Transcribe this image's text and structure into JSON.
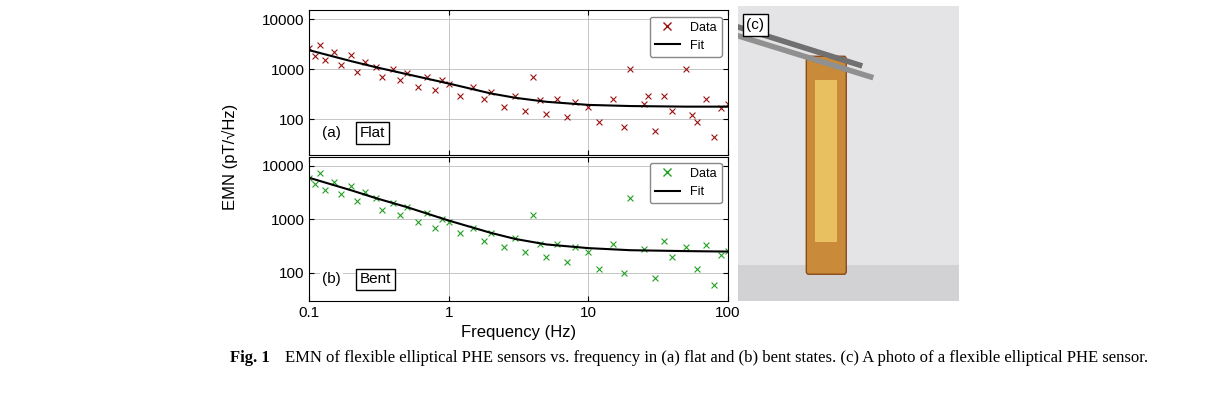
{
  "chart_data": [
    {
      "type": "scatter",
      "panel_label": "(a)",
      "state_label": "Flat",
      "log": true,
      "grid": true,
      "legend": "upper right",
      "tick_labels": "y",
      "xlim": [
        0.1,
        100
      ],
      "xticks": [
        0.1,
        1,
        10,
        100
      ],
      "ylim": [
        20,
        15000
      ],
      "yticks": [
        100,
        1000,
        10000
      ],
      "series": [
        {
          "name": "Data",
          "type": "scatter",
          "marker": "x",
          "color": "#9b1111",
          "x": [
            0.1,
            0.11,
            0.12,
            0.13,
            0.15,
            0.17,
            0.2,
            0.22,
            0.25,
            0.3,
            0.33,
            0.4,
            0.45,
            0.5,
            0.6,
            0.7,
            0.8,
            0.9,
            1,
            1.2,
            1.5,
            1.8,
            2,
            2.5,
            3,
            3.5,
            4,
            4.5,
            5,
            6,
            7,
            8,
            10,
            12,
            15,
            18,
            20,
            25,
            27,
            30,
            35,
            40,
            50,
            55,
            60,
            70,
            80,
            90,
            100
          ],
          "values": [
            2600,
            1800,
            3000,
            1500,
            2200,
            1200,
            1900,
            900,
            1400,
            1100,
            700,
            1000,
            600,
            850,
            450,
            700,
            380,
            600,
            500,
            300,
            450,
            250,
            350,
            180,
            300,
            150,
            700,
            240,
            130,
            250,
            110,
            220,
            180,
            90,
            260,
            70,
            1000,
            200,
            300,
            60,
            300,
            150,
            1000,
            120,
            90,
            250,
            45,
            170,
            200
          ]
        },
        {
          "name": "Fit",
          "type": "line",
          "color": "#000000",
          "line_style": "solid",
          "x": [
            0.1,
            0.2,
            0.3,
            0.5,
            1,
            2,
            3,
            5,
            10,
            20,
            50,
            100
          ],
          "values": [
            2400,
            1450,
            1100,
            800,
            520,
            330,
            270,
            225,
            195,
            185,
            180,
            180
          ]
        }
      ]
    },
    {
      "type": "scatter",
      "panel_label": "(b)",
      "state_label": "Bent",
      "log": true,
      "grid": true,
      "legend": "upper right",
      "x_label": "Frequency (Hz)",
      "xlim": [
        0.1,
        100
      ],
      "xticks": [
        0.1,
        1,
        10,
        100
      ],
      "ylim": [
        30,
        15000
      ],
      "yticks": [
        100,
        1000,
        10000
      ],
      "series": [
        {
          "name": "Data",
          "type": "scatter",
          "marker": "x",
          "color": "#22a022",
          "x": [
            0.1,
            0.11,
            0.12,
            0.13,
            0.15,
            0.17,
            0.2,
            0.22,
            0.25,
            0.3,
            0.33,
            0.4,
            0.45,
            0.5,
            0.6,
            0.7,
            0.8,
            0.9,
            1,
            1.2,
            1.5,
            1.8,
            2,
            2.5,
            3,
            3.5,
            4,
            4.5,
            5,
            6,
            7,
            8,
            10,
            12,
            15,
            18,
            20,
            25,
            30,
            35,
            40,
            50,
            60,
            70,
            80,
            90,
            100
          ],
          "values": [
            6000,
            4500,
            7500,
            3500,
            5000,
            3000,
            4200,
            2200,
            3200,
            2500,
            1500,
            2000,
            1200,
            1700,
            900,
            1300,
            700,
            1000,
            900,
            550,
            700,
            400,
            550,
            300,
            450,
            250,
            1200,
            350,
            200,
            350,
            160,
            300,
            250,
            120,
            350,
            100,
            2500,
            280,
            80,
            400,
            200,
            300,
            120,
            330,
            60,
            220,
            260
          ]
        },
        {
          "name": "Fit",
          "type": "line",
          "color": "#000000",
          "line_style": "solid",
          "x": [
            0.1,
            0.2,
            0.3,
            0.5,
            1,
            2,
            3,
            5,
            10,
            20,
            50,
            100
          ],
          "values": [
            6000,
            3500,
            2500,
            1700,
            950,
            560,
            430,
            340,
            290,
            265,
            255,
            250
          ]
        }
      ]
    }
  ],
  "y_label": "EMN (pT/√Hz)",
  "photo": {
    "label": "(c)"
  },
  "caption": {
    "label": "Fig. 1",
    "text": "EMN of flexible elliptical PHE sensors vs. frequency in (a) flat and (b) bent states. (c) A photo of a flexible elliptical PHE sensor."
  }
}
